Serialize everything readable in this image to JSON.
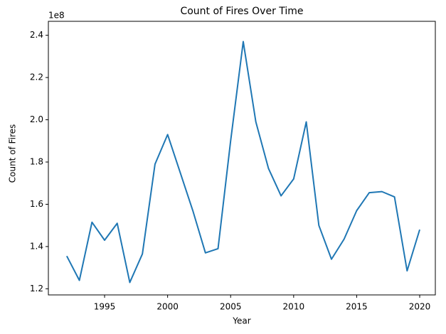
{
  "chart_data": {
    "type": "line",
    "title": "Count of Fires Over Time",
    "x_label": "Year",
    "y_label": "Count of Fires",
    "y_offset_label": "1e8",
    "x": [
      1992,
      1993,
      1994,
      1995,
      1996,
      1997,
      1998,
      1999,
      2000,
      2001,
      2002,
      2003,
      2004,
      2005,
      2006,
      2007,
      2008,
      2009,
      2010,
      2011,
      2012,
      2013,
      2014,
      2015,
      2016,
      2017,
      2018,
      2019,
      2020
    ],
    "series": [
      {
        "name": "Count of Fires",
        "color": "#1f77b4",
        "values": [
          1.355,
          1.24,
          1.515,
          1.43,
          1.51,
          1.23,
          1.365,
          1.79,
          1.93,
          1.75,
          1.57,
          1.37,
          1.39,
          1.9,
          2.37,
          1.99,
          1.77,
          1.64,
          1.72,
          1.99,
          1.5,
          1.34,
          1.435,
          1.57,
          1.655,
          1.66,
          1.635,
          1.285,
          1.48
        ]
      }
    ],
    "xlim": [
      1990.54,
      2021.24
    ],
    "xticks": [
      1995,
      2000,
      2005,
      2010,
      2015,
      2020
    ],
    "ylim": [
      1.171,
      2.466
    ],
    "yticks": [
      1.2,
      1.4,
      1.6,
      1.8,
      2.0,
      2.2,
      2.4
    ],
    "grid": false
  }
}
